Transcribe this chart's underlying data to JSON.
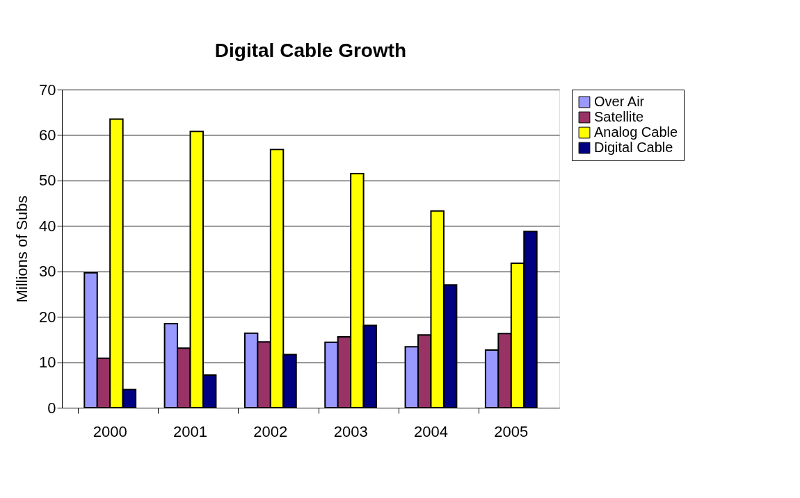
{
  "chart_data": {
    "type": "bar",
    "title": "Digital Cable Growth",
    "ylabel": "Millions of Subs",
    "categories": [
      "2000",
      "2001",
      "2002",
      "2003",
      "2004",
      "2005"
    ],
    "series": [
      {
        "name": "Over Air",
        "color": "#9999ff",
        "values": [
          29.7,
          18.5,
          16.4,
          14.4,
          13.4,
          12.7
        ]
      },
      {
        "name": "Satellite",
        "color": "#993366",
        "values": [
          10.9,
          13.1,
          14.5,
          15.6,
          16.0,
          16.3
        ]
      },
      {
        "name": "Analog Cable",
        "color": "#ffff00",
        "values": [
          63.5,
          60.8,
          56.8,
          51.5,
          43.3,
          31.8
        ]
      },
      {
        "name": "Digital Cable",
        "color": "#000080",
        "values": [
          4.0,
          7.2,
          11.7,
          18.1,
          27.0,
          38.8
        ]
      }
    ],
    "ylim": [
      0,
      70
    ],
    "yticks": [
      0,
      10,
      20,
      30,
      40,
      50,
      60,
      70
    ],
    "grid": "y",
    "legend": "right"
  }
}
